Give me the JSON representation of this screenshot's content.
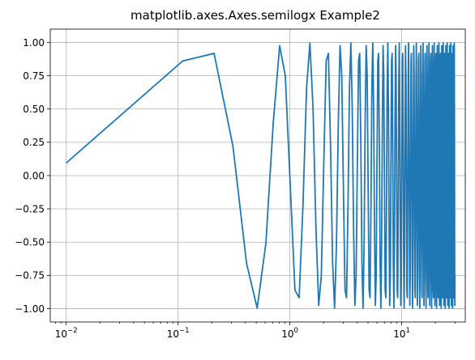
{
  "chart_data": {
    "type": "line",
    "title": "matplotlib.axes.Axes.semilogx Example2",
    "xlabel": "",
    "ylabel": "",
    "xscale": "log",
    "xlim": [
      0.0072,
      37
    ],
    "ylim": [
      -1.1,
      1.1
    ],
    "grid": true,
    "x_ticks": [
      {
        "value": 0.01,
        "base": "10",
        "exp": "−2"
      },
      {
        "value": 0.1,
        "base": "10",
        "exp": "−1"
      },
      {
        "value": 1,
        "base": "10",
        "exp": "0"
      },
      {
        "value": 10,
        "base": "10",
        "exp": "1"
      }
    ],
    "y_ticks": [
      {
        "value": -1.0,
        "label": "−1.00"
      },
      {
        "value": -0.75,
        "label": "−0.75"
      },
      {
        "value": -0.5,
        "label": "−0.50"
      },
      {
        "value": -0.25,
        "label": "−0.25"
      },
      {
        "value": 0.0,
        "label": "0.00"
      },
      {
        "value": 0.25,
        "label": "0.25"
      },
      {
        "value": 0.5,
        "label": "0.50"
      },
      {
        "value": 0.75,
        "label": "0.75"
      },
      {
        "value": 1.0,
        "label": "1.00"
      }
    ],
    "series": [
      {
        "color": "#1f77b4",
        "function": "sin(3*pi*x)",
        "x_start": 0.01,
        "x_stop": 30,
        "x_step": 0.1
      }
    ]
  }
}
